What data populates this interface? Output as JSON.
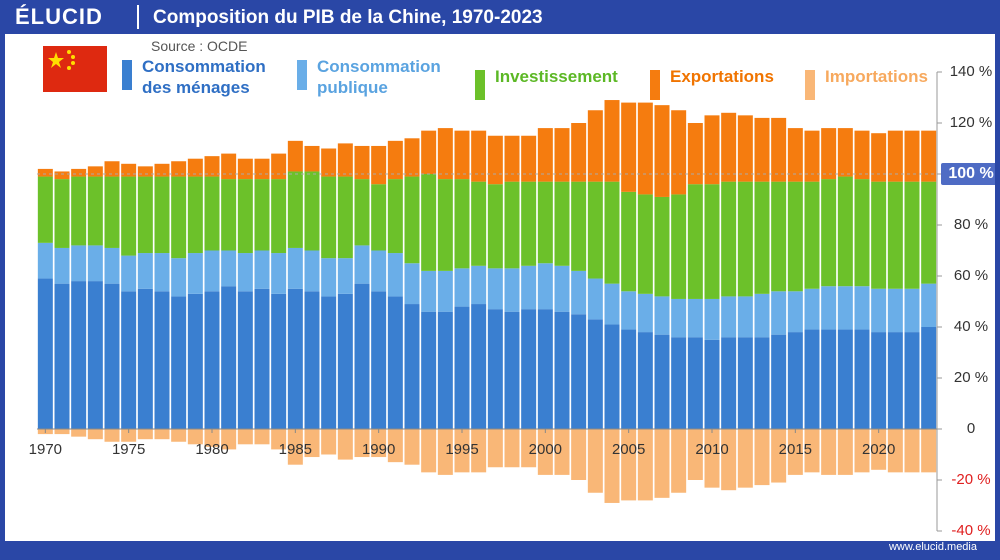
{
  "header": {
    "logo": "ÉLUCID",
    "footer": "www.elucid.media"
  },
  "chart_data": {
    "type": "stacked_bar",
    "title": "Composition du PIB de la Chine, 1970-2023",
    "subtitle": "Source : OCDE",
    "x": [
      1970,
      1971,
      1972,
      1973,
      1974,
      1975,
      1976,
      1977,
      1978,
      1979,
      1980,
      1981,
      1982,
      1983,
      1984,
      1985,
      1986,
      1987,
      1988,
      1989,
      1990,
      1991,
      1992,
      1993,
      1994,
      1995,
      1996,
      1997,
      1998,
      1999,
      2000,
      2001,
      2002,
      2003,
      2004,
      2005,
      2006,
      2007,
      2008,
      2009,
      2010,
      2011,
      2012,
      2013,
      2014,
      2015,
      2016,
      2017,
      2018,
      2019,
      2020,
      2021,
      2022,
      2023
    ],
    "xlim": [
      1969.5,
      2023.5
    ],
    "xticks": [
      1970,
      1975,
      1980,
      1985,
      1990,
      1995,
      2000,
      2005,
      2010,
      2015,
      2020
    ],
    "ylim": [
      -40,
      140
    ],
    "yticks": [
      {
        "value": -40,
        "label": "-40 %"
      },
      {
        "value": -20,
        "label": "-20 %"
      },
      0,
      {
        "value": 20,
        "label": "20 %"
      },
      {
        "value": 40,
        "label": "40 %"
      },
      {
        "value": 60,
        "label": "60 %"
      },
      {
        "value": 80,
        "label": "80 %"
      },
      {
        "value": 100,
        "label": "100 %",
        "highlight": true
      },
      {
        "value": 120,
        "label": "120 %"
      },
      {
        "value": 140,
        "label": "140 %"
      }
    ],
    "series": [
      {
        "name": "Consommation des ménages",
        "color": "#3a7fd0",
        "text_color": "#2f6fc4",
        "values": [
          59,
          57,
          58,
          58,
          57,
          54,
          55,
          54,
          52,
          53,
          54,
          56,
          54,
          55,
          53,
          55,
          54,
          52,
          53,
          57,
          54,
          52,
          49,
          46,
          46,
          48,
          49,
          47,
          46,
          47,
          47,
          46,
          45,
          43,
          41,
          39,
          38,
          37,
          36,
          36,
          35,
          36,
          36,
          36,
          37,
          38,
          39,
          39,
          39,
          39,
          38,
          38,
          38,
          40
        ]
      },
      {
        "name": "Consommation publique",
        "color": "#6aaee8",
        "text_color": "#5aa3e0",
        "values": [
          14,
          14,
          14,
          14,
          14,
          14,
          14,
          15,
          15,
          16,
          16,
          14,
          15,
          15,
          16,
          16,
          16,
          15,
          14,
          15,
          16,
          17,
          16,
          16,
          16,
          15,
          15,
          16,
          17,
          17,
          18,
          18,
          17,
          16,
          16,
          15,
          15,
          15,
          15,
          15,
          16,
          16,
          16,
          17,
          17,
          16,
          16,
          17,
          17,
          17,
          17,
          17,
          17,
          17
        ]
      },
      {
        "name": "Investissement",
        "color": "#6cc12a",
        "text_color": "#5cb825",
        "values": [
          26,
          27,
          27,
          27,
          28,
          31,
          30,
          30,
          32,
          30,
          29,
          28,
          29,
          28,
          29,
          30,
          31,
          32,
          32,
          26,
          26,
          29,
          34,
          38,
          36,
          35,
          33,
          33,
          34,
          33,
          32,
          33,
          35,
          38,
          40,
          39,
          39,
          39,
          41,
          45,
          45,
          45,
          45,
          44,
          43,
          43,
          42,
          42,
          43,
          42,
          42,
          42,
          42,
          40
        ]
      },
      {
        "name": "Exportations",
        "color": "#f57c0f",
        "text_color": "#f07400",
        "values": [
          3,
          3,
          3,
          4,
          6,
          5,
          4,
          5,
          6,
          7,
          8,
          10,
          8,
          8,
          10,
          12,
          10,
          11,
          13,
          13,
          15,
          15,
          15,
          17,
          20,
          19,
          20,
          19,
          18,
          18,
          21,
          21,
          23,
          28,
          32,
          35,
          36,
          36,
          33,
          24,
          27,
          27,
          26,
          25,
          25,
          21,
          20,
          20,
          19,
          19,
          19,
          20,
          20,
          20
        ]
      },
      {
        "name": "Importations",
        "color": "#f9b777",
        "text_color": "#f7a95e",
        "values": [
          -2,
          -2,
          -3,
          -4,
          -5,
          -5,
          -4,
          -4,
          -5,
          -6,
          -7,
          -8,
          -6,
          -6,
          -8,
          -14,
          -11,
          -10,
          -12,
          -11,
          -11,
          -13,
          -14,
          -17,
          -18,
          -17,
          -17,
          -15,
          -15,
          -15,
          -18,
          -18,
          -20,
          -25,
          -29,
          -28,
          -28,
          -27,
          -25,
          -20,
          -23,
          -24,
          -23,
          -22,
          -21,
          -18,
          -17,
          -18,
          -18,
          -17,
          -16,
          -17,
          -17,
          -17
        ]
      }
    ]
  }
}
